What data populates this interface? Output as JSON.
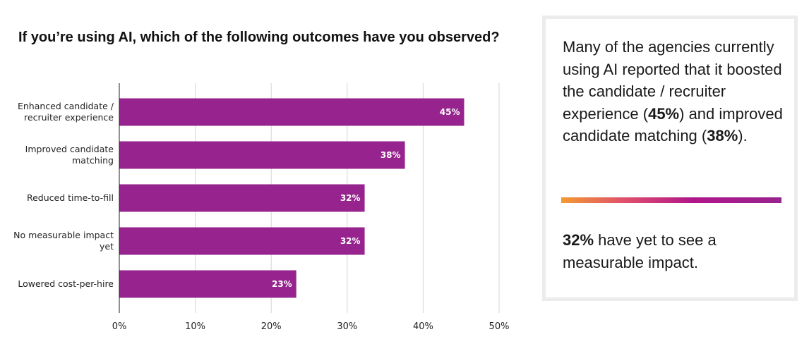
{
  "chart_data": {
    "type": "bar",
    "orientation": "horizontal",
    "title": "If you’re using AI, which of the following outcomes have you observed?",
    "categories": [
      [
        "Enhanced candidate /",
        "recruiter experience"
      ],
      [
        "Improved candidate",
        "matching"
      ],
      [
        "Reduced time-to-fill"
      ],
      [
        "No measurable impact",
        "yet"
      ],
      [
        "Lowered cost-per-hire"
      ]
    ],
    "values": [
      45.4,
      37.6,
      32.3,
      32.3,
      23.3
    ],
    "data_labels": [
      "45%",
      "38%",
      "32%",
      "32%",
      "23%"
    ],
    "xlim": [
      0,
      50
    ],
    "xticks": [
      0,
      10,
      20,
      30,
      40,
      50
    ],
    "xtick_labels": [
      "0%",
      "10%",
      "20%",
      "30%",
      "40%",
      "50%"
    ],
    "grid": true,
    "bar_color": "#97248e"
  },
  "panel": {
    "p1_a": "Many of the agencies currently using AI reported that it boosted the candidate / recruiter experience (",
    "p1_b": "45%",
    "p1_c": ") and improved candidate matching (",
    "p1_d": "38%",
    "p1_e": ").",
    "p2_a": "32%",
    "p2_b": " have yet to see a measurable impact."
  },
  "colors": {
    "divider_gradient": [
      "#f39a33",
      "#de4d6d",
      "#b0168a",
      "#97248e"
    ],
    "panel_border": "#ececec"
  }
}
